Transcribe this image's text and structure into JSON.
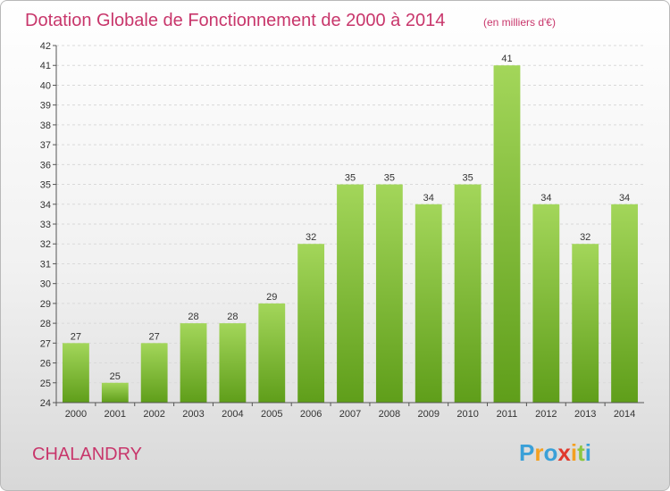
{
  "chart_data": {
    "type": "bar",
    "title": "Dotation Globale de Fonctionnement de 2000 à 2014",
    "subtitle": "(en milliers d'€)",
    "xlabel": "",
    "ylabel": "",
    "categories": [
      "2000",
      "2001",
      "2002",
      "2003",
      "2004",
      "2005",
      "2006",
      "2007",
      "2008",
      "2009",
      "2010",
      "2011",
      "2012",
      "2013",
      "2014"
    ],
    "values": [
      27,
      25,
      27,
      28,
      28,
      29,
      32,
      35,
      35,
      34,
      35,
      41,
      34,
      32,
      34
    ],
    "ylim": [
      24,
      42
    ],
    "yticks": [
      24,
      25,
      26,
      27,
      28,
      29,
      30,
      31,
      32,
      33,
      34,
      35,
      36,
      37,
      38,
      39,
      40,
      41,
      42
    ],
    "grid": true,
    "bar_color_top": "#a3d65a",
    "bar_color_bottom": "#5f9e1a"
  },
  "footer": {
    "town": "CHALANDRY",
    "brand": "Proxiti"
  },
  "brand_colors": [
    "#3aa0d8",
    "#f4a020",
    "#3aa0d8",
    "#e0382c",
    "#f4a020",
    "#8cc63f",
    "#3aa0d8"
  ]
}
